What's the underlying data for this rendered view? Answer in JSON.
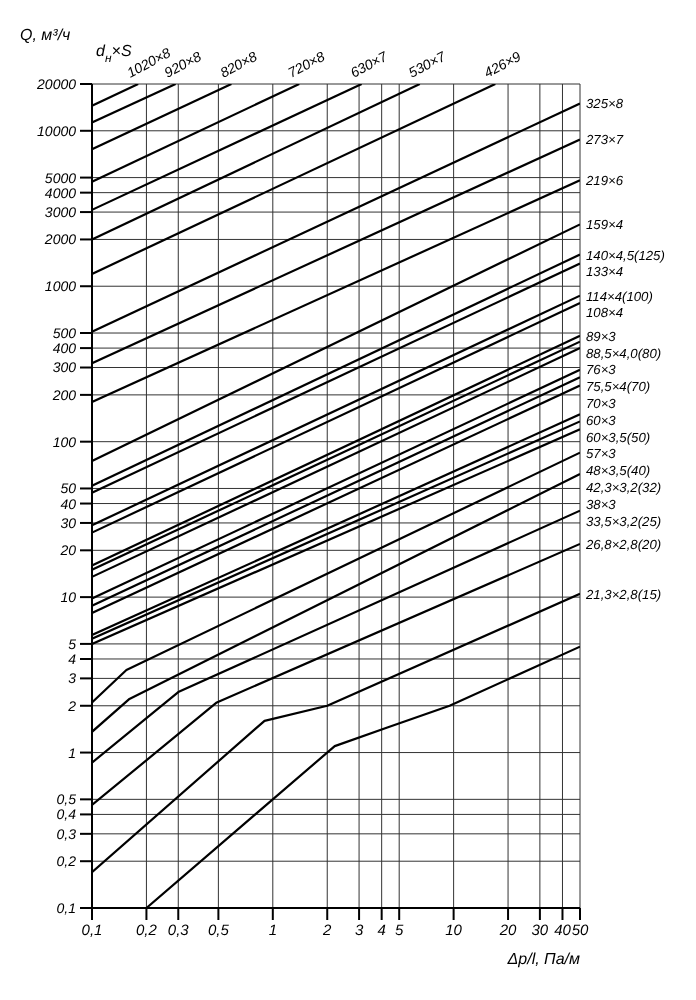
{
  "chart_data": {
    "type": "line",
    "ylabel": "Q, м³/ч",
    "xlabel": "Δp/l, Па/м",
    "legend_title": "d$_{н}$×S",
    "log": "xy",
    "grid": true,
    "xlim": [
      0.1,
      50
    ],
    "xticks": [
      {
        "value": 0.1,
        "label": "0,1"
      },
      {
        "value": 0.2,
        "label": "0,2"
      },
      {
        "value": 0.3,
        "label": "0,3"
      },
      {
        "value": 0.5,
        "label": "0,5"
      },
      1,
      2,
      3,
      4,
      5,
      10,
      20,
      30,
      40,
      50
    ],
    "ylim": [
      0.1,
      20000
    ],
    "yticks": [
      {
        "value": 0.1,
        "label": "0,1"
      },
      {
        "value": 0.2,
        "label": "0,2"
      },
      {
        "value": 0.3,
        "label": "0,3"
      },
      {
        "value": 0.4,
        "label": "0,4"
      },
      {
        "value": 0.5,
        "label": "0,5"
      },
      1,
      2,
      3,
      4,
      5,
      10,
      20,
      30,
      40,
      50,
      100,
      200,
      300,
      400,
      500,
      1000,
      2000,
      3000,
      4000,
      5000,
      10000,
      20000
    ],
    "series": [
      {
        "name": "1020×8",
        "color": "#000000",
        "x": [
          0.1,
          0.18
        ],
        "values": [
          14500,
          20000
        ]
      },
      {
        "name": "920×8",
        "color": "#000000",
        "x": [
          0.1,
          0.29
        ],
        "values": [
          11300,
          20000
        ]
      },
      {
        "name": "820×8",
        "color": "#000000",
        "x": [
          0.1,
          0.59
        ],
        "values": [
          7600,
          20000
        ]
      },
      {
        "name": "720×8",
        "color": "#000000",
        "x": [
          0.1,
          1.4
        ],
        "values": [
          4700,
          20000
        ]
      },
      {
        "name": "630×7",
        "color": "#000000",
        "x": [
          0.1,
          3.1
        ],
        "values": [
          3100,
          20000
        ]
      },
      {
        "name": "530×7",
        "color": "#000000",
        "x": [
          0.1,
          6.5
        ],
        "values": [
          2000,
          20000
        ]
      },
      {
        "name": "426×9",
        "color": "#000000",
        "x": [
          0.1,
          17
        ],
        "values": [
          1200,
          20000
        ]
      },
      {
        "name": "325×8",
        "color": "#000000",
        "x": [
          0.1,
          50
        ],
        "values": [
          510,
          15000
        ]
      },
      {
        "name": "273×7",
        "color": "#000000",
        "x": [
          0.1,
          50
        ],
        "values": [
          320,
          8800
        ]
      },
      {
        "name": "219×6",
        "color": "#000000",
        "x": [
          0.1,
          50
        ],
        "values": [
          180,
          4800
        ]
      },
      {
        "name": "159×4",
        "color": "#000000",
        "x": [
          0.1,
          50
        ],
        "values": [
          75,
          2500
        ]
      },
      {
        "name": "140×4,5(125)",
        "color": "#000000",
        "x": [
          0.1,
          50
        ],
        "values": [
          52,
          1600
        ]
      },
      {
        "name": "133×4",
        "color": "#000000",
        "x": [
          0.1,
          50
        ],
        "values": [
          47,
          1400
        ]
      },
      {
        "name": "114×4(100)",
        "color": "#000000",
        "x": [
          0.1,
          50
        ],
        "values": [
          29,
          870
        ]
      },
      {
        "name": "108×4",
        "color": "#000000",
        "x": [
          0.1,
          50
        ],
        "values": [
          26,
          780
        ]
      },
      {
        "name": "89×3",
        "color": "#000000",
        "x": [
          0.1,
          50
        ],
        "values": [
          16,
          480
        ]
      },
      {
        "name": "88,5×4,0(80)",
        "color": "#000000",
        "x": [
          0.1,
          50
        ],
        "values": [
          15,
          440
        ]
      },
      {
        "name": "76×3",
        "color": "#000000",
        "x": [
          0.1,
          50
        ],
        "values": [
          13.5,
          400
        ]
      },
      {
        "name": "75,5×4(70)",
        "color": "#000000",
        "x": [
          0.1,
          50
        ],
        "values": [
          9.8,
          290
        ]
      },
      {
        "name": "70×3",
        "color": "#000000",
        "x": [
          0.1,
          50
        ],
        "values": [
          8.8,
          260
        ]
      },
      {
        "name": "60×3",
        "color": "#000000",
        "x": [
          0.1,
          50
        ],
        "values": [
          7.9,
          230
        ]
      },
      {
        "name": "60×3,5(50)",
        "color": "#000000",
        "x": [
          0.1,
          50
        ],
        "values": [
          5.7,
          150
        ]
      },
      {
        "name": "57×3",
        "color": "#000000",
        "x": [
          0.1,
          50
        ],
        "values": [
          5.4,
          135
        ]
      },
      {
        "name": "48×3,5(40)",
        "color": "#000000",
        "x": [
          0.1,
          50
        ],
        "values": [
          5,
          120
        ]
      },
      {
        "name": "42,3×3,2(32)",
        "color": "#000000",
        "x": [
          0.1,
          0.155,
          50
        ],
        "values": [
          2.1,
          3.4,
          85
        ]
      },
      {
        "name": "38×3",
        "color": "#000000",
        "x": [
          0.1,
          0.16,
          50
        ],
        "values": [
          1.36,
          2.2,
          62
        ]
      },
      {
        "name": "33,5×3,2(25)",
        "color": "#000000",
        "x": [
          0.1,
          0.3,
          50
        ],
        "values": [
          0.86,
          2.45,
          36
        ]
      },
      {
        "name": "26,8×2,8(20)",
        "color": "#000000",
        "x": [
          0.1,
          0.49,
          50
        ],
        "values": [
          0.46,
          2.1,
          22
        ]
      },
      {
        "name": "21,3×2,8(15)",
        "color": "#000000",
        "x": [
          0.1,
          0.9,
          2,
          50
        ],
        "values": [
          0.17,
          1.6,
          2,
          10.5
        ]
      },
      {
        "name": null,
        "color": "#000000",
        "x": [
          0.2,
          2.2,
          4.3,
          9.5,
          50
        ],
        "values": [
          0.1,
          1.1,
          1.45,
          2,
          4.8
        ]
      }
    ]
  }
}
